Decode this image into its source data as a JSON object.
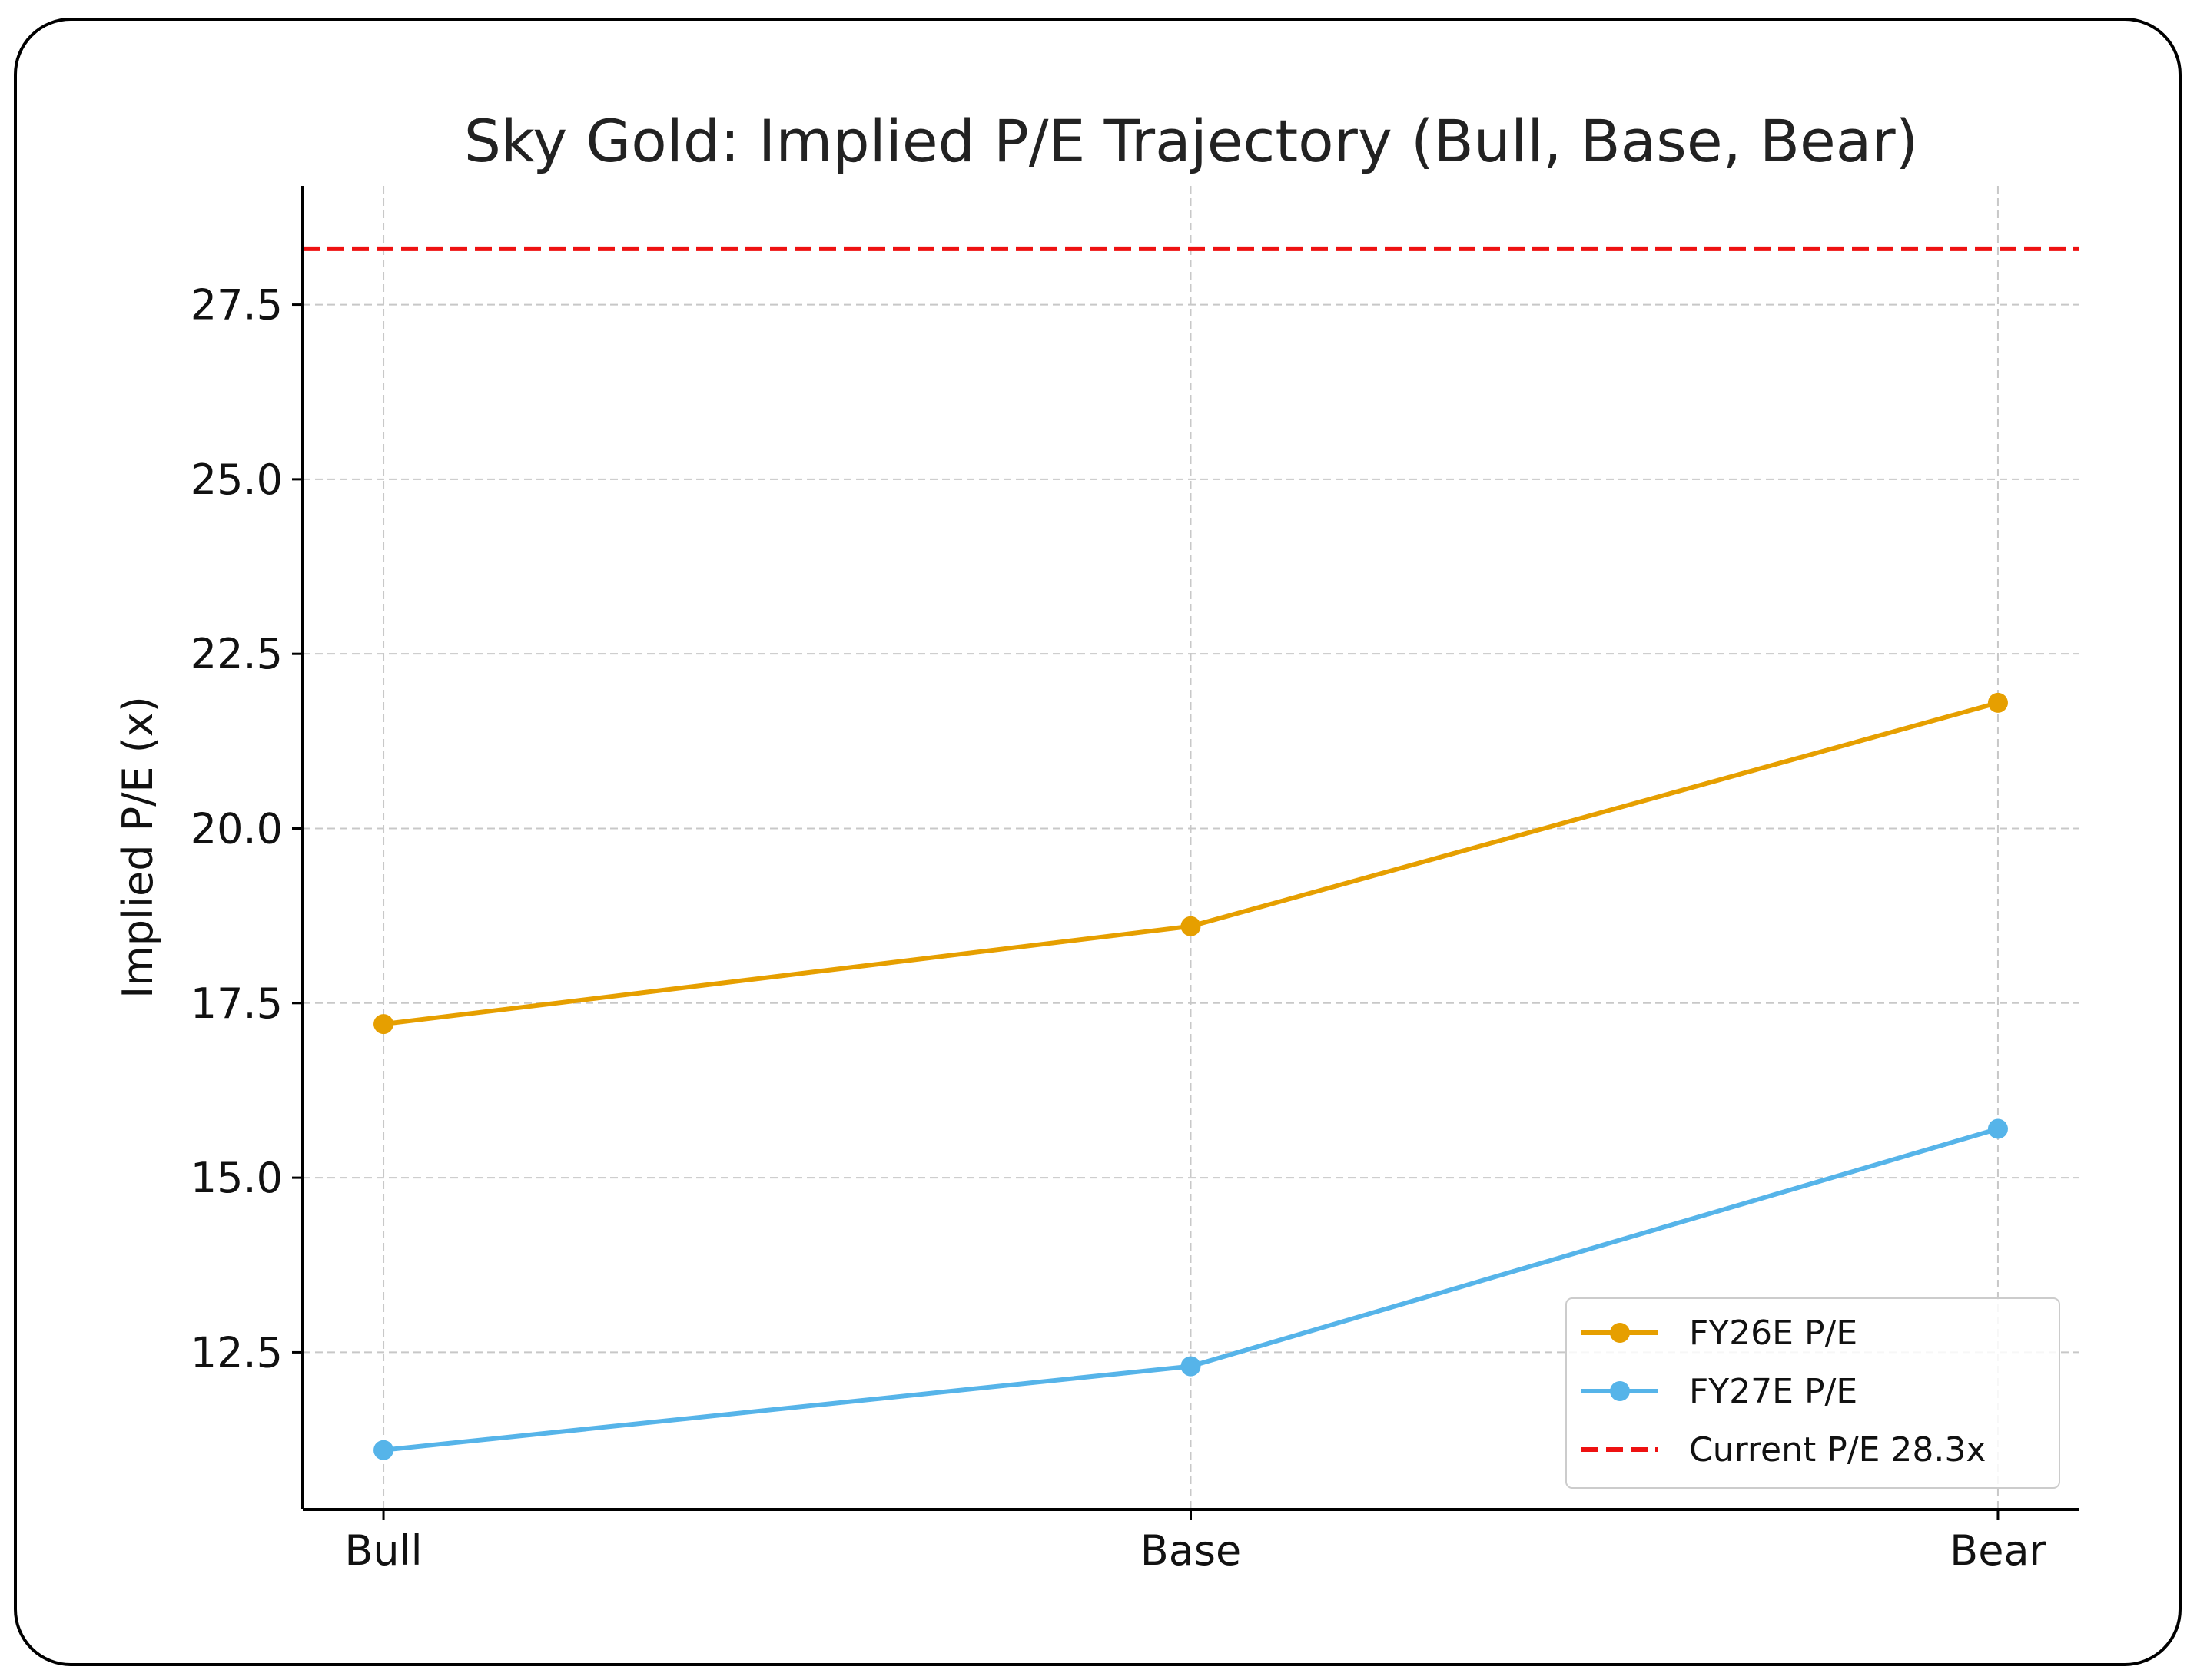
{
  "chart_data": {
    "type": "line",
    "title": "Sky Gold: Implied P/E Trajectory (Bull, Base, Bear)",
    "xlabel": "",
    "ylabel": "Implied P/E (x)",
    "categories": [
      "Bull",
      "Base",
      "Bear"
    ],
    "series": [
      {
        "name": "FY26E P/E",
        "values": [
          17.2,
          18.6,
          21.8
        ],
        "color": "#E69F00",
        "marker": "circle"
      },
      {
        "name": "FY27E P/E",
        "values": [
          11.1,
          12.3,
          15.7
        ],
        "color": "#56B4E9",
        "marker": "circle"
      }
    ],
    "reference_lines": [
      {
        "name": "Current P/E 28.3x",
        "value": 28.3,
        "color": "#EE1111",
        "style": "dashed"
      }
    ],
    "ylim": [
      10.25,
      29.2
    ],
    "yticks": [
      12.5,
      15.0,
      17.5,
      20.0,
      22.5,
      25.0,
      27.5
    ],
    "ytick_labels": [
      "12.5",
      "15.0",
      "17.5",
      "20.0",
      "22.5",
      "25.0",
      "27.5"
    ],
    "grid": true,
    "legend_position": "lower-right"
  }
}
